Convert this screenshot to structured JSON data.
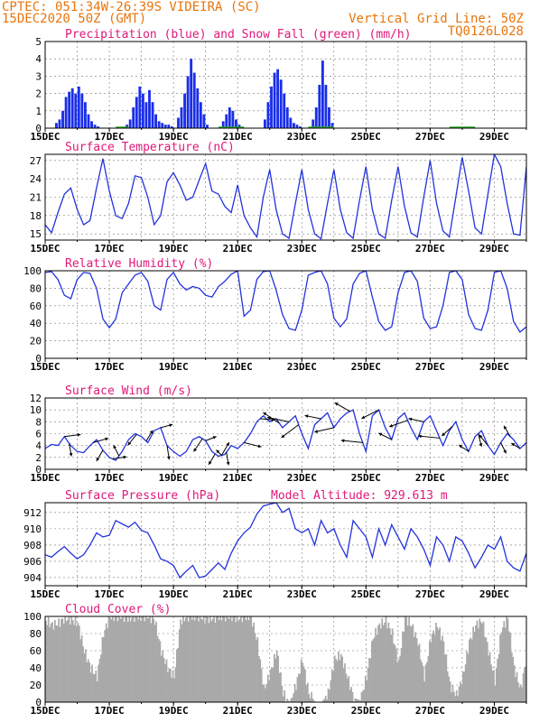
{
  "header": {
    "line1": "CPTEC:   051:34W-26:39S  VIDEIRA (SC)",
    "line2": "15DEC2020 50Z (GMT)",
    "grid_note": "Vertical Grid Line: 50Z",
    "code": "TQ0126L028"
  },
  "colors": {
    "header": "#e8750c",
    "title": "#e0187a",
    "line": "#2233dd",
    "bar": "#1a2ee8",
    "snow": "#22aa22",
    "cloud": "#a9a9a9",
    "grid": "#777777"
  },
  "x_ticks": [
    "15DEC",
    "17DEC",
    "19DEC",
    "21DEC",
    "23DEC",
    "25DEC",
    "27DEC",
    "29DEC"
  ],
  "chart_data": [
    {
      "id": "precip",
      "type": "bar",
      "title": "Precipitation (blue) and Snow Fall (green) (mm/h)",
      "ylim": [
        0,
        5
      ],
      "yticks": [
        0,
        1,
        2,
        3,
        4,
        5
      ],
      "xlim": [
        0,
        15
      ],
      "grid": true,
      "x": [
        0.35,
        0.45,
        0.55,
        0.65,
        0.75,
        0.85,
        0.95,
        1.05,
        1.15,
        1.25,
        1.35,
        1.45,
        1.55,
        1.65,
        2.55,
        2.65,
        2.75,
        2.85,
        2.95,
        3.05,
        3.15,
        3.25,
        3.35,
        3.45,
        3.55,
        3.65,
        3.75,
        3.85,
        3.95,
        4.15,
        4.25,
        4.35,
        4.45,
        4.55,
        4.65,
        4.75,
        4.85,
        4.95,
        5.05,
        5.55,
        5.65,
        5.75,
        5.85,
        5.95,
        6.05,
        6.85,
        6.95,
        7.05,
        7.15,
        7.25,
        7.35,
        7.45,
        7.55,
        7.65,
        7.75,
        7.85,
        7.95,
        8.35,
        8.45,
        8.55,
        8.65,
        8.75,
        8.85,
        8.95
      ],
      "values": [
        0.3,
        0.5,
        1.0,
        1.8,
        2.1,
        2.3,
        2.0,
        2.4,
        2.0,
        1.5,
        0.8,
        0.4,
        0.2,
        0.1,
        0.2,
        0.5,
        1.2,
        1.8,
        2.4,
        2.0,
        1.5,
        2.2,
        1.5,
        0.8,
        0.4,
        0.3,
        0.2,
        0.2,
        0.1,
        0.6,
        1.2,
        2.0,
        3.0,
        4.0,
        3.2,
        2.3,
        1.5,
        0.8,
        0.2,
        0.4,
        0.8,
        1.2,
        1.0,
        0.5,
        0.2,
        0.5,
        1.5,
        2.4,
        3.2,
        3.4,
        2.8,
        2.0,
        1.2,
        0.6,
        0.3,
        0.2,
        0.1,
        0.5,
        1.2,
        2.5,
        3.9,
        2.5,
        1.2,
        0.3
      ]
    },
    {
      "id": "temp",
      "type": "line",
      "title": "Surface Temperature (nC)",
      "ylim": [
        14,
        28
      ],
      "yticks": [
        15,
        18,
        21,
        24,
        27
      ],
      "xlim": [
        0,
        15
      ],
      "grid": true,
      "x": [
        0,
        0.2,
        0.4,
        0.6,
        0.8,
        1.0,
        1.2,
        1.4,
        1.6,
        1.8,
        2.0,
        2.2,
        2.4,
        2.6,
        2.8,
        3.0,
        3.2,
        3.4,
        3.6,
        3.8,
        4.0,
        4.2,
        4.4,
        4.6,
        4.8,
        5.0,
        5.2,
        5.4,
        5.6,
        5.8,
        6.0,
        6.2,
        6.4,
        6.6,
        6.8,
        7.0,
        7.2,
        7.4,
        7.6,
        7.8,
        8.0,
        8.2,
        8.4,
        8.6,
        8.8,
        9.0,
        9.2,
        9.4,
        9.6,
        9.8,
        10.0,
        10.2,
        10.4,
        10.6,
        10.8,
        11.0,
        11.2,
        11.4,
        11.6,
        11.8,
        12.0,
        12.2,
        12.4,
        12.6,
        12.8,
        13.0,
        13.2,
        13.4,
        13.6,
        13.8,
        14.0,
        14.2,
        14.4,
        14.6,
        14.8,
        15.0
      ],
      "values": [
        16.5,
        15.2,
        18.5,
        21.5,
        22.5,
        19.0,
        16.5,
        17.2,
        22.5,
        27.3,
        22.0,
        18.0,
        17.5,
        20.0,
        24.5,
        24.2,
        21.0,
        16.5,
        18.0,
        23.5,
        25.0,
        23.0,
        20.5,
        21.0,
        23.8,
        26.5,
        22.0,
        21.5,
        19.5,
        18.5,
        23.0,
        18.0,
        16.0,
        14.5,
        21.0,
        25.5,
        19.0,
        15.0,
        14.3,
        20.0,
        25.5,
        19.0,
        15.0,
        14.2,
        20.0,
        25.5,
        19.0,
        15.2,
        14.3,
        20.5,
        26.0,
        19.0,
        15.0,
        14.3,
        20.5,
        26.0,
        19.5,
        15.2,
        14.5,
        21.0,
        27.0,
        20.0,
        15.5,
        14.5,
        21.0,
        27.5,
        22.0,
        16.0,
        15.0,
        21.5,
        28.0,
        26.0,
        20.0,
        15.0,
        14.8,
        26.0
      ]
    },
    {
      "id": "rh",
      "type": "line",
      "title": "Relative Humidity (%)",
      "ylim": [
        0,
        100
      ],
      "yticks": [
        0,
        20,
        40,
        60,
        80,
        100
      ],
      "xlim": [
        0,
        15
      ],
      "grid": true,
      "x": [
        0,
        0.2,
        0.4,
        0.6,
        0.8,
        1.0,
        1.2,
        1.4,
        1.6,
        1.8,
        2.0,
        2.2,
        2.4,
        2.6,
        2.8,
        3.0,
        3.2,
        3.4,
        3.6,
        3.8,
        4.0,
        4.2,
        4.4,
        4.6,
        4.8,
        5.0,
        5.2,
        5.4,
        5.6,
        5.8,
        6.0,
        6.2,
        6.4,
        6.6,
        6.8,
        7.0,
        7.2,
        7.4,
        7.6,
        7.8,
        8.0,
        8.2,
        8.4,
        8.6,
        8.8,
        9.0,
        9.2,
        9.4,
        9.6,
        9.8,
        10.0,
        10.2,
        10.4,
        10.6,
        10.8,
        11.0,
        11.2,
        11.4,
        11.6,
        11.8,
        12.0,
        12.2,
        12.4,
        12.6,
        12.8,
        13.0,
        13.2,
        13.4,
        13.6,
        13.8,
        14.0,
        14.2,
        14.4,
        14.6,
        14.8,
        15.0
      ],
      "values": [
        98,
        99,
        90,
        72,
        68,
        90,
        98,
        97,
        80,
        45,
        35,
        45,
        75,
        85,
        95,
        98,
        88,
        60,
        55,
        90,
        98,
        85,
        78,
        82,
        80,
        72,
        70,
        82,
        88,
        96,
        100,
        48,
        55,
        90,
        99,
        100,
        78,
        50,
        34,
        32,
        55,
        95,
        98,
        100,
        85,
        46,
        36,
        45,
        85,
        97,
        100,
        70,
        42,
        32,
        36,
        75,
        98,
        100,
        88,
        46,
        34,
        36,
        60,
        98,
        100,
        90,
        50,
        34,
        32,
        55,
        98,
        100,
        80,
        42,
        30,
        36
      ]
    },
    {
      "id": "wind",
      "type": "line",
      "title": "Surface Wind (m/s)",
      "ylim": [
        0,
        12
      ],
      "yticks": [
        0,
        2,
        4,
        6,
        8,
        10,
        12
      ],
      "xlim": [
        0,
        15
      ],
      "grid": true,
      "x": [
        0,
        0.2,
        0.4,
        0.6,
        0.8,
        1.0,
        1.2,
        1.4,
        1.6,
        1.8,
        2.0,
        2.2,
        2.4,
        2.6,
        2.8,
        3.0,
        3.2,
        3.4,
        3.6,
        3.8,
        4.0,
        4.2,
        4.4,
        4.6,
        4.8,
        5.0,
        5.2,
        5.4,
        5.6,
        5.8,
        6.0,
        6.2,
        6.4,
        6.6,
        6.8,
        7.0,
        7.2,
        7.4,
        7.6,
        7.8,
        8.0,
        8.2,
        8.4,
        8.6,
        8.8,
        9.0,
        9.2,
        9.4,
        9.6,
        9.8,
        10.0,
        10.2,
        10.4,
        10.6,
        10.8,
        11.0,
        11.2,
        11.4,
        11.6,
        11.8,
        12.0,
        12.2,
        12.4,
        12.6,
        12.8,
        13.0,
        13.2,
        13.4,
        13.6,
        13.8,
        14.0,
        14.2,
        14.4,
        14.6,
        14.8,
        15.0
      ],
      "values": [
        3.5,
        4.2,
        4.0,
        5.5,
        4.0,
        3.0,
        2.8,
        4.0,
        5.0,
        3.2,
        2.0,
        1.5,
        3.0,
        5.0,
        6.0,
        5.5,
        4.5,
        6.5,
        7.0,
        4.0,
        3.0,
        2.2,
        3.0,
        5.0,
        5.5,
        4.8,
        3.0,
        2.2,
        2.5,
        4.0,
        3.5,
        4.5,
        6.0,
        8.0,
        9.0,
        8.0,
        8.5,
        7.0,
        8.0,
        9.0,
        6.0,
        3.5,
        7.5,
        8.5,
        9.5,
        7.0,
        8.5,
        9.5,
        10.0,
        6.0,
        3.0,
        9.0,
        10.0,
        7.0,
        5.0,
        8.5,
        9.5,
        7.0,
        5.0,
        8.0,
        9.0,
        6.5,
        4.0,
        6.5,
        8.0,
        5.0,
        3.0,
        5.5,
        6.5,
        4.0,
        2.5,
        4.5,
        6.0,
        5.0,
        3.5,
        4.5
      ],
      "vectors": [
        {
          "x": 0.6,
          "u": 1.5,
          "v": 0.2
        },
        {
          "x": 0.75,
          "u": 0.2,
          "v": -1.2
        },
        {
          "x": 1.5,
          "u": 1.4,
          "v": 0.4
        },
        {
          "x": 1.8,
          "u": -0.6,
          "v": -1.0
        },
        {
          "x": 2.1,
          "u": 1.3,
          "v": 0.2
        },
        {
          "x": 2.3,
          "u": -0.5,
          "v": 1.0
        },
        {
          "x": 2.85,
          "u": -0.8,
          "v": -1.0
        },
        {
          "x": 3.15,
          "u": 0.6,
          "v": 1.0
        },
        {
          "x": 3.6,
          "u": 1.1,
          "v": 0.3
        },
        {
          "x": 3.8,
          "u": 0.2,
          "v": -1.3
        },
        {
          "x": 4.9,
          "u": -0.8,
          "v": -1.2
        },
        {
          "x": 5.0,
          "u": 1.0,
          "v": 0.4
        },
        {
          "x": 5.3,
          "u": -0.6,
          "v": -1.0
        },
        {
          "x": 5.5,
          "u": -0.5,
          "v": 0.5
        },
        {
          "x": 5.65,
          "u": 0.2,
          "v": -1.2
        },
        {
          "x": 5.5,
          "u": 0.7,
          "v": 1.2
        },
        {
          "x": 6.2,
          "u": 1.6,
          "v": -0.4
        },
        {
          "x": 6.7,
          "u": 1.4,
          "v": -0.1
        },
        {
          "x": 7.3,
          "u": -1.5,
          "v": 1.0
        },
        {
          "x": 7.6,
          "u": -2.0,
          "v": 0.4
        },
        {
          "x": 7.9,
          "u": -1.6,
          "v": -1.2
        },
        {
          "x": 8.6,
          "u": -1.5,
          "v": 0.3
        },
        {
          "x": 9.0,
          "u": -1.8,
          "v": -0.4
        },
        {
          "x": 9.5,
          "u": -1.4,
          "v": 0.8
        },
        {
          "x": 9.9,
          "u": -2.0,
          "v": 0.2
        },
        {
          "x": 10.4,
          "u": -1.6,
          "v": -0.8
        },
        {
          "x": 10.8,
          "u": -1.2,
          "v": 0.6
        },
        {
          "x": 11.3,
          "u": -1.7,
          "v": -0.6
        },
        {
          "x": 11.8,
          "u": -1.4,
          "v": 0.3
        },
        {
          "x": 12.3,
          "u": -2.0,
          "v": 0.2
        },
        {
          "x": 12.7,
          "u": -1.0,
          "v": -0.9
        },
        {
          "x": 13.2,
          "u": -0.9,
          "v": 0.6
        },
        {
          "x": 13.5,
          "u": 0.3,
          "v": -1.2
        },
        {
          "x": 13.8,
          "u": -0.8,
          "v": 1.0
        },
        {
          "x": 14.2,
          "u": 0.5,
          "v": -1.0
        },
        {
          "x": 14.5,
          "u": -0.6,
          "v": 1.0
        },
        {
          "x": 14.8,
          "u": -0.8,
          "v": 0.5
        }
      ]
    },
    {
      "id": "pres",
      "type": "line",
      "title": "Surface Pressure (hPa)",
      "annotation": "Model Altitude: 929.613 m",
      "ylim": [
        903,
        913.2
      ],
      "yticks": [
        904,
        906,
        908,
        910,
        912
      ],
      "xlim": [
        0,
        15
      ],
      "grid": true,
      "x": [
        0,
        0.2,
        0.4,
        0.6,
        0.8,
        1.0,
        1.2,
        1.4,
        1.6,
        1.8,
        2.0,
        2.2,
        2.4,
        2.6,
        2.8,
        3.0,
        3.2,
        3.4,
        3.6,
        3.8,
        4.0,
        4.2,
        4.4,
        4.6,
        4.8,
        5.0,
        5.2,
        5.4,
        5.6,
        5.8,
        6.0,
        6.2,
        6.4,
        6.6,
        6.8,
        7.0,
        7.2,
        7.4,
        7.6,
        7.8,
        8.0,
        8.2,
        8.4,
        8.6,
        8.8,
        9.0,
        9.2,
        9.4,
        9.6,
        9.8,
        10.0,
        10.2,
        10.4,
        10.6,
        10.8,
        11.0,
        11.2,
        11.4,
        11.6,
        11.8,
        12.0,
        12.2,
        12.4,
        12.6,
        12.8,
        13.0,
        13.2,
        13.4,
        13.6,
        13.8,
        14.0,
        14.2,
        14.4,
        14.6,
        14.8,
        15.0
      ],
      "values": [
        906.8,
        906.5,
        907.2,
        907.8,
        907.0,
        906.3,
        906.8,
        908.0,
        909.5,
        909.0,
        909.2,
        911.0,
        910.6,
        910.2,
        910.8,
        909.8,
        909.5,
        908.0,
        906.3,
        906.0,
        905.5,
        904.0,
        904.8,
        905.5,
        904.0,
        904.2,
        905.0,
        905.8,
        905.0,
        907.0,
        908.5,
        909.5,
        910.2,
        911.8,
        912.8,
        913.0,
        913.2,
        912.0,
        912.5,
        910.0,
        909.5,
        910.0,
        908.0,
        911.0,
        909.5,
        910.0,
        908.0,
        906.5,
        911.0,
        910.0,
        909.0,
        906.5,
        910.0,
        908.0,
        910.5,
        909.0,
        907.5,
        910.0,
        909.0,
        907.5,
        905.5,
        909.0,
        908.0,
        906.0,
        909.0,
        908.5,
        907.0,
        905.2,
        906.5,
        908.0,
        907.5,
        909.0,
        906.0,
        905.2,
        904.8,
        907.0
      ]
    },
    {
      "id": "cloud",
      "type": "area",
      "title": "Cloud Cover (%)",
      "ylim": [
        0,
        100
      ],
      "yticks": [
        0,
        20,
        40,
        60,
        80,
        100
      ],
      "xlim": [
        0,
        15
      ],
      "grid": true,
      "x": [
        0,
        0.2,
        0.4,
        0.6,
        0.8,
        1.0,
        1.2,
        1.4,
        1.6,
        1.8,
        2.0,
        2.2,
        2.4,
        2.6,
        2.8,
        3.0,
        3.2,
        3.4,
        3.6,
        3.8,
        4.0,
        4.2,
        4.4,
        4.6,
        4.8,
        5.0,
        5.2,
        5.4,
        5.6,
        5.8,
        6.0,
        6.2,
        6.4,
        6.6,
        6.8,
        7.0,
        7.2,
        7.4,
        7.6,
        7.8,
        8.0,
        8.2,
        8.4,
        8.6,
        8.8,
        9.0,
        9.2,
        9.4,
        9.6,
        9.8,
        10.0,
        10.2,
        10.4,
        10.6,
        10.8,
        11.0,
        11.2,
        11.4,
        11.6,
        11.8,
        12.0,
        12.2,
        12.4,
        12.6,
        12.8,
        13.0,
        13.2,
        13.4,
        13.6,
        13.8,
        14.0,
        14.2,
        14.4,
        14.6,
        14.8,
        15.0
      ],
      "values": [
        95,
        90,
        92,
        98,
        96,
        92,
        60,
        40,
        30,
        80,
        100,
        100,
        100,
        98,
        100,
        100,
        100,
        95,
        60,
        40,
        30,
        95,
        100,
        100,
        100,
        97,
        98,
        100,
        100,
        100,
        98,
        100,
        100,
        70,
        15,
        35,
        60,
        10,
        0,
        20,
        50,
        10,
        0,
        0,
        10,
        50,
        55,
        30,
        5,
        2,
        30,
        75,
        90,
        95,
        80,
        45,
        98,
        90,
        70,
        30,
        75,
        90,
        70,
        20,
        8,
        30,
        70,
        90,
        95,
        60,
        25,
        85,
        98,
        40,
        15,
        55
      ]
    }
  ]
}
